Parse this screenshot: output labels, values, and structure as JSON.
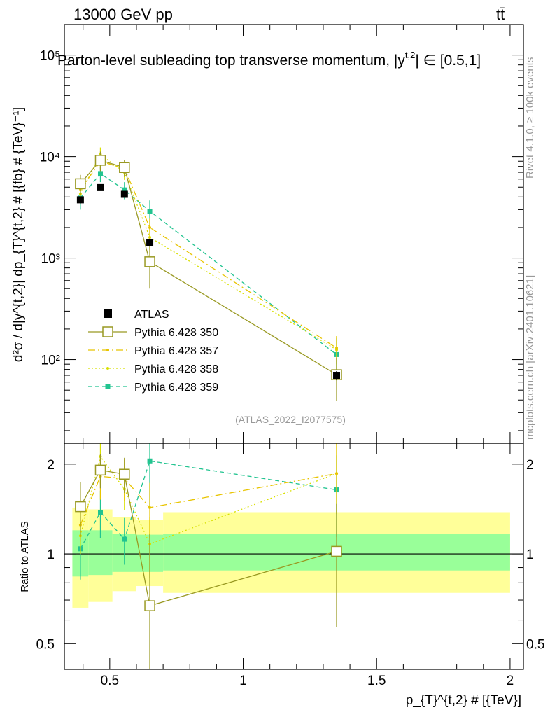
{
  "header": {
    "energy_label": "13000 GeV pp",
    "process_label": "tt̄",
    "title": "Parton-level subleading top transverse momentum, |y",
    "title_sup": "t,2",
    "title_tail": "| ∈ [0.5,1]",
    "watermark": "(ATLAS_2022_I2077575)"
  },
  "side": {
    "rivet": "Rivet 4.1.0, ≥ 100k events",
    "mcplots": "mcplots.cern.ch [arXiv:2401.10621]"
  },
  "axes": {
    "ylabel_main": "d²σ / d|y^{t,2}| dp_{T}^{t,2} # [{fb} # {TeV}⁻¹]",
    "ylabel_ratio": "Ratio to ATLAS",
    "xlabel": "p_{T}^{t,2} # [{TeV}]",
    "x_ticks": [
      "0.5",
      "1",
      "1.5",
      "2"
    ],
    "y_ticks_main": [
      "10²",
      "10³",
      "10⁴",
      "10⁵"
    ],
    "y_ticks_ratio": [
      "0.5",
      "1",
      "2"
    ]
  },
  "legend": {
    "items": [
      {
        "label": "ATLAS",
        "color": "#000000"
      },
      {
        "label": "Pythia 6.428 350",
        "color": "#999922"
      },
      {
        "label": "Pythia 6.428 357",
        "color": "#e8c400"
      },
      {
        "label": "Pythia 6.428 358",
        "color": "#d8e000"
      },
      {
        "label": "Pythia 6.428 359",
        "color": "#22c490"
      }
    ]
  },
  "chart_data": {
    "type": "scatter",
    "title": "Parton-level subleading top transverse momentum, |y^{t,2}| ∈ [0.5,1]",
    "xlabel": "p_T^{t,2} [TeV]",
    "ylabel": "d²σ / d|y^{t,2}| dp_T^{t,2} [fb TeV⁻¹]",
    "xlim": [
      0.33,
      2.05
    ],
    "ylim": [
      15,
      200000
    ],
    "ratio_ylim": [
      0.41,
      2.35
    ],
    "bins": [
      [
        0.36,
        0.42
      ],
      [
        0.42,
        0.51
      ],
      [
        0.51,
        0.6
      ],
      [
        0.6,
        0.7
      ],
      [
        0.7,
        2.0
      ]
    ],
    "data": {
      "name": "ATLAS",
      "x": [
        0.39,
        0.465,
        0.555,
        0.65,
        1.35
      ],
      "y": [
        3750,
        4950,
        4250,
        1420,
        70
      ],
      "yerr": [
        300,
        350,
        300,
        120,
        7
      ],
      "band_inner": [
        [
          0.84,
          1.2
        ],
        [
          0.85,
          1.2
        ],
        [
          0.87,
          1.17
        ],
        [
          0.87,
          1.16
        ],
        [
          0.88,
          1.17
        ]
      ],
      "band_outer": [
        [
          0.66,
          1.43
        ],
        [
          0.69,
          1.41
        ],
        [
          0.75,
          1.33
        ],
        [
          0.78,
          1.3
        ],
        [
          0.74,
          1.38
        ]
      ]
    },
    "series": [
      {
        "name": "Pythia 6.428 350",
        "color": "#999922",
        "marker": "open-square",
        "x": [
          0.39,
          0.465,
          0.555,
          0.65,
          1.35
        ],
        "y": [
          5400,
          9200,
          7800,
          920,
          71
        ],
        "err": [
          1200,
          2000,
          1500,
          420,
          32
        ],
        "ratio": [
          1.44,
          1.91,
          1.85,
          0.67,
          1.02
        ],
        "ratio_err": [
          0.3,
          0.25,
          0.25,
          0.5,
          0.45
        ]
      },
      {
        "name": "Pythia 6.428 357",
        "color": "#e8c400",
        "marker": "dot",
        "dash": "10,4,2,4",
        "x": [
          0.39,
          0.465,
          0.555,
          0.65,
          1.35
        ],
        "y": [
          4700,
          9000,
          7600,
          2000,
          130
        ],
        "err": [
          600,
          1500,
          1200,
          450,
          40
        ],
        "ratio": [
          1.25,
          1.82,
          1.79,
          1.43,
          1.86
        ],
        "ratio_err": [
          0.15,
          0.3,
          0.28,
          0.3,
          0.5
        ]
      },
      {
        "name": "Pythia 6.428 358",
        "color": "#d8e000",
        "marker": "dot",
        "dash": "2,3",
        "x": [
          0.39,
          0.465,
          0.555,
          0.65,
          1.35
        ],
        "y": [
          4300,
          10500,
          7000,
          1600,
          125
        ],
        "err": [
          500,
          1800,
          1100,
          400,
          45
        ],
        "ratio": [
          1.15,
          2.12,
          1.65,
          1.08,
          1.86
        ],
        "ratio_err": [
          0.15,
          0.4,
          0.25,
          0.25,
          0.5
        ]
      },
      {
        "name": "Pythia 6.428 359",
        "color": "#22c490",
        "marker": "filled-square",
        "dash": "6,4",
        "x": [
          0.39,
          0.465,
          0.555,
          0.65,
          1.35
        ],
        "y": [
          3900,
          6800,
          4700,
          2900,
          112
        ],
        "err": [
          900,
          1200,
          900,
          800,
          50
        ],
        "ratio": [
          1.04,
          1.38,
          1.12,
          2.05,
          1.64
        ],
        "ratio_err": [
          0.22,
          0.25,
          0.2,
          0.6,
          0.5
        ]
      }
    ]
  }
}
